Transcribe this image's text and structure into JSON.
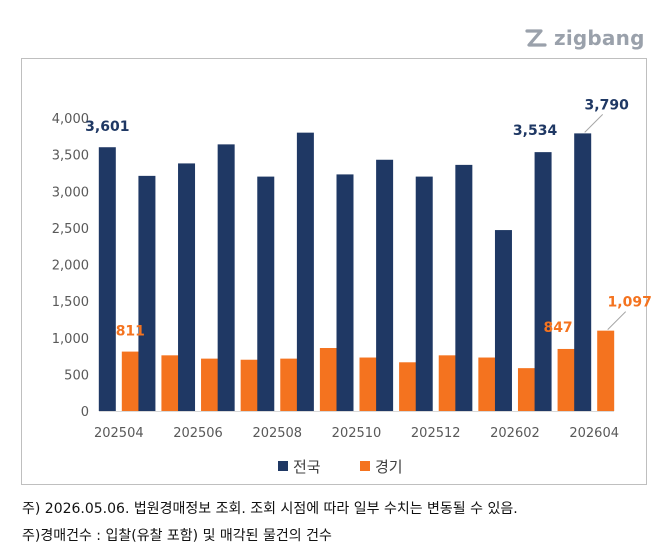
{
  "logo": {
    "text": "zigbang",
    "icon": "zigbang-logo-icon",
    "color": "#9aa1ab"
  },
  "chart_data": {
    "type": "bar",
    "categories": [
      "202504",
      "202505",
      "202506",
      "202507",
      "202508",
      "202509",
      "202510",
      "202511",
      "202512",
      "202601",
      "202602",
      "202603",
      "202604"
    ],
    "x_tick_labels": [
      "202504",
      "202506",
      "202508",
      "202510",
      "202512",
      "202602",
      "202604"
    ],
    "ylim": [
      0,
      4000
    ],
    "y_ticks": [
      0,
      500,
      1000,
      1500,
      2000,
      2500,
      3000,
      3500,
      4000
    ],
    "y_tick_labels": [
      "0",
      "500",
      "1,000",
      "1,500",
      "2,000",
      "2,500",
      "3,000",
      "3,500",
      "4,000"
    ],
    "grid": false,
    "legend_position": "bottom",
    "series": [
      {
        "name": "전국",
        "color": "#1f3864",
        "values": [
          3601,
          3210,
          3380,
          3640,
          3200,
          3800,
          3230,
          3430,
          3200,
          3360,
          2470,
          3534,
          3790
        ]
      },
      {
        "name": "경기",
        "color": "#f4731f",
        "values": [
          811,
          760,
          715,
          700,
          715,
          860,
          730,
          665,
          760,
          730,
          585,
          847,
          1097
        ]
      }
    ],
    "data_labels": [
      {
        "series": 0,
        "index": 0,
        "text": "3,601"
      },
      {
        "series": 0,
        "index": 11,
        "text": "3,534"
      },
      {
        "series": 0,
        "index": 12,
        "text": "3,790"
      },
      {
        "series": 1,
        "index": 0,
        "text": "811"
      },
      {
        "series": 1,
        "index": 11,
        "text": "847"
      },
      {
        "series": 1,
        "index": 12,
        "text": "1,097"
      }
    ]
  },
  "notes": [
    "주) 2026.05.06. 법원경매정보 조회. 조회 시점에 따라 일부 수치는 변동될 수 있음.",
    "주)경매건수 : 입찰(유찰 포함) 및 매각된 물건의 건수"
  ]
}
